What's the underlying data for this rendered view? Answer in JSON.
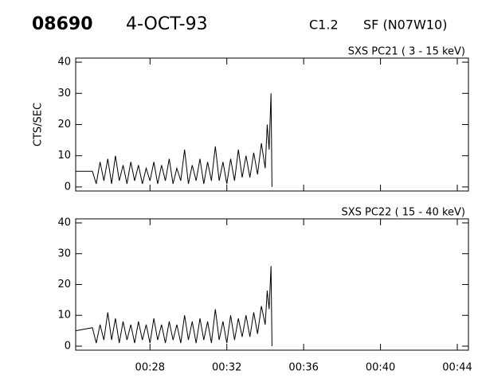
{
  "header": {
    "id": "08690",
    "date": "4-OCT-93",
    "class": "C1.2",
    "location": "SF (N07W10)"
  },
  "chart_data": [
    {
      "type": "line",
      "title": "SXS PC21  (  3 - 15 keV)",
      "y_label": "CTS/SEC",
      "xlim": [
        24.13,
        44.58
      ],
      "ylim": [
        -1.3,
        41.3
      ],
      "xticks": [
        {
          "value": 28,
          "label": "00:28"
        },
        {
          "value": 32,
          "label": "00:32"
        },
        {
          "value": 36,
          "label": "00:36"
        },
        {
          "value": 40,
          "label": "00:40"
        },
        {
          "value": 44,
          "label": "00:44"
        }
      ],
      "yticks": [
        0,
        10,
        20,
        30,
        40
      ],
      "series": [
        {
          "color": "#000000",
          "x": [
            24.13,
            25.0,
            25.2,
            25.4,
            25.6,
            25.8,
            26.0,
            26.2,
            26.4,
            26.6,
            26.8,
            27.0,
            27.2,
            27.4,
            27.6,
            27.8,
            28.0,
            28.2,
            28.4,
            28.6,
            28.8,
            29.0,
            29.2,
            29.4,
            29.6,
            29.8,
            30.0,
            30.2,
            30.4,
            30.6,
            30.8,
            31.0,
            31.2,
            31.4,
            31.6,
            31.8,
            32.0,
            32.2,
            32.4,
            32.6,
            32.8,
            33.0,
            33.2,
            33.4,
            33.6,
            33.8,
            34.0,
            34.1,
            34.2,
            34.3,
            34.35
          ],
          "values": [
            5,
            5,
            1,
            8,
            2,
            9,
            1,
            10,
            2,
            7,
            1,
            8,
            2,
            7,
            1,
            6,
            2,
            8,
            1,
            7,
            2,
            9,
            1,
            6,
            2,
            12,
            1,
            7,
            2,
            9,
            1,
            8,
            2,
            13,
            2,
            8,
            1,
            9,
            2,
            12,
            3,
            10,
            3,
            11,
            4,
            14,
            6,
            20,
            12,
            30,
            0
          ]
        }
      ]
    },
    {
      "type": "line",
      "title": "SXS PC22  ( 15 - 40 keV)",
      "xlim": [
        24.13,
        44.58
      ],
      "ylim": [
        -1.3,
        41.3
      ],
      "xticks": [
        {
          "value": 28,
          "label": "00:28"
        },
        {
          "value": 32,
          "label": "00:32"
        },
        {
          "value": 36,
          "label": "00:36"
        },
        {
          "value": 40,
          "label": "00:40"
        },
        {
          "value": 44,
          "label": "00:44"
        }
      ],
      "yticks": [
        0,
        10,
        20,
        30,
        40
      ],
      "series": [
        {
          "color": "#000000",
          "x": [
            24.13,
            25.0,
            25.2,
            25.4,
            25.6,
            25.8,
            26.0,
            26.2,
            26.4,
            26.6,
            26.8,
            27.0,
            27.2,
            27.4,
            27.6,
            27.8,
            28.0,
            28.2,
            28.4,
            28.6,
            28.8,
            29.0,
            29.2,
            29.4,
            29.6,
            29.8,
            30.0,
            30.2,
            30.4,
            30.6,
            30.8,
            31.0,
            31.2,
            31.4,
            31.6,
            31.8,
            32.0,
            32.2,
            32.4,
            32.6,
            32.8,
            33.0,
            33.2,
            33.4,
            33.6,
            33.8,
            34.0,
            34.1,
            34.2,
            34.3,
            34.35
          ],
          "values": [
            5,
            6,
            1,
            7,
            2,
            11,
            2,
            9,
            1,
            8,
            2,
            7,
            1,
            8,
            2,
            7,
            1,
            9,
            2,
            7,
            1,
            8,
            2,
            7,
            1,
            10,
            2,
            8,
            1,
            9,
            2,
            8,
            1,
            12,
            2,
            8,
            1,
            10,
            2,
            9,
            3,
            10,
            3,
            11,
            4,
            13,
            7,
            18,
            12,
            26,
            0
          ]
        }
      ]
    }
  ]
}
